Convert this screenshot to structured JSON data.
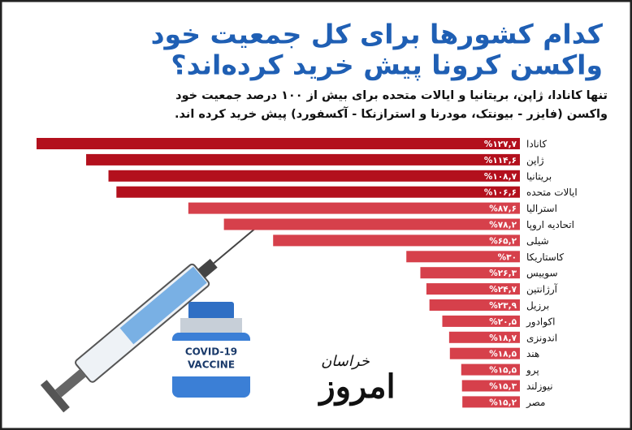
{
  "chart_data": {
    "type": "bar",
    "title_lines": [
      "کدام کشورها برای کل جمعیت خود",
      "واکسن کرونا پیش خرید کرده‌اند؟"
    ],
    "subtitle_lines": [
      "تنها کانادا، ژاپن، بریتانیا و ایالات متحده برای بیش از ۱۰۰ درصد جمعیت خود",
      "واکسن (فایزر - بیونتک، مودرنا و استرازنکا - آکسفورد) پیش خرید کرده اند."
    ],
    "categories": [
      "کانادا",
      "ژاپن",
      "بریتانیا",
      "ایالات متحده",
      "استرالیا",
      "اتحادیه اروپا",
      "شیلی",
      "کاستاریکا",
      "سوییس",
      "آرژانتین",
      "برزیل",
      "اکوادور",
      "اندونزی",
      "هند",
      "پرو",
      "نیوزلند",
      "مصر"
    ],
    "values": [
      127.7,
      114.6,
      108.7,
      106.6,
      87.6,
      78.2,
      65.2,
      30,
      26.3,
      24.7,
      23.9,
      20.5,
      18.7,
      18.5,
      15.5,
      15.3,
      15.2
    ],
    "value_labels": [
      "%۱۲۷,۷",
      "%۱۱۴,۶",
      "%۱۰۸,۷",
      "%۱۰۶,۶",
      "%۸۷,۶",
      "%۷۸,۲",
      "%۶۵,۲",
      "%۳۰",
      "%۲۶,۳",
      "%۲۴,۷",
      "%۲۳,۹",
      "%۲۰,۵",
      "%۱۸,۷",
      "%۱۸,۵",
      "%۱۵,۵",
      "%۱۵,۳",
      "%۱۵,۲"
    ],
    "colors": [
      "#b3101d",
      "#b3101d",
      "#b3101d",
      "#b3101d",
      "#d6404b",
      "#d6404b",
      "#d6404b",
      "#d6404b",
      "#d6404b",
      "#d6404b",
      "#d6404b",
      "#d6404b",
      "#d6404b",
      "#d6404b",
      "#d6404b",
      "#d6404b",
      "#d6404b"
    ],
    "vaccine_label": [
      "COVID-19",
      "VACCINE"
    ],
    "logo": [
      "امروز",
      "خراسان"
    ]
  }
}
